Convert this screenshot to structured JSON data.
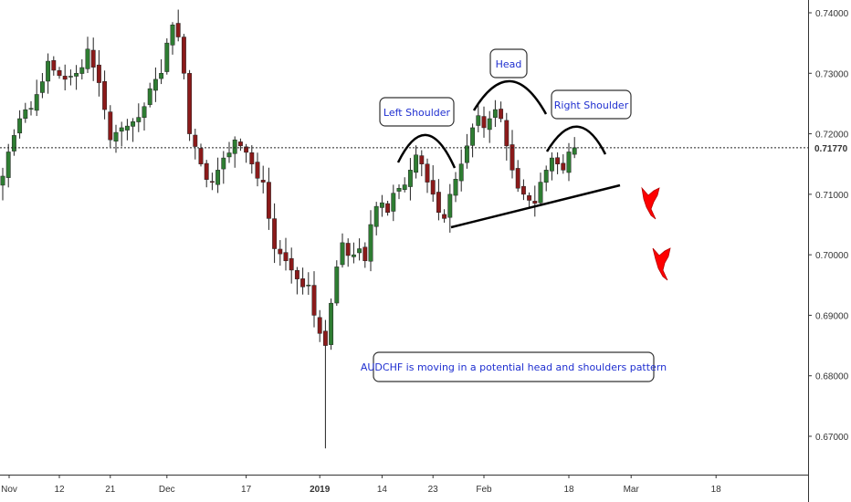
{
  "chart_data": {
    "type": "candlestick",
    "symbol_note": "AUDCHF",
    "y_axis": {
      "position": "right",
      "ylim": [
        0.664,
        0.7435
      ],
      "tick_values": [
        0.67,
        0.68,
        0.69,
        0.7,
        0.71,
        0.72,
        0.73,
        0.74
      ],
      "tick_labels": [
        "0.67000",
        "0.68000",
        "0.69000",
        "0.70000",
        "0.71000",
        "0.72000",
        "0.73000",
        "0.74000"
      ]
    },
    "x_axis": {
      "bars_total": 142,
      "ticks": [
        {
          "label": "Nov",
          "bar": 0,
          "bold": false
        },
        {
          "label": "12",
          "bar": 10,
          "bold": false
        },
        {
          "label": "21",
          "bar": 19,
          "bold": false
        },
        {
          "label": "Dec",
          "bar": 29,
          "bold": false
        },
        {
          "label": "17",
          "bar": 43,
          "bold": false
        },
        {
          "label": "2019",
          "bar": 56,
          "bold": true
        },
        {
          "label": "14",
          "bar": 67,
          "bold": false
        },
        {
          "label": "23",
          "bar": 76,
          "bold": false
        },
        {
          "label": "Feb",
          "bar": 85,
          "bold": false
        },
        {
          "label": "18",
          "bar": 100,
          "bold": false
        },
        {
          "label": "Mar",
          "bar": 111,
          "bold": false
        },
        {
          "label": "18",
          "bar": 126,
          "bold": false
        }
      ]
    },
    "last_price": {
      "value": 0.7177,
      "label": "0.71770"
    },
    "colors": {
      "up": "#2e7d32",
      "down": "#8b1a1a",
      "wick": "#222222",
      "trendline": "#000000",
      "annotation_text": "#1f2fd0"
    },
    "close_waypoints": [
      [
        0,
        0.713
      ],
      [
        1,
        0.717
      ],
      [
        3,
        0.7225
      ],
      [
        6,
        0.7265
      ],
      [
        8,
        0.732
      ],
      [
        9,
        0.7305
      ],
      [
        11,
        0.729
      ],
      [
        13,
        0.73
      ],
      [
        15,
        0.734
      ],
      [
        16,
        0.731
      ],
      [
        18,
        0.724
      ],
      [
        19,
        0.719
      ],
      [
        21,
        0.721
      ],
      [
        23,
        0.722
      ],
      [
        25,
        0.7245
      ],
      [
        27,
        0.729
      ],
      [
        28,
        0.73
      ],
      [
        29,
        0.735
      ],
      [
        30,
        0.738
      ],
      [
        31,
        0.736
      ],
      [
        32,
        0.73
      ],
      [
        33,
        0.72
      ],
      [
        35,
        0.715
      ],
      [
        37,
        0.712
      ],
      [
        39,
        0.716
      ],
      [
        41,
        0.719
      ],
      [
        42,
        0.718
      ],
      [
        44,
        0.715
      ],
      [
        46,
        0.712
      ],
      [
        47,
        0.706
      ],
      [
        48,
        0.701
      ],
      [
        50,
        0.699
      ],
      [
        52,
        0.696
      ],
      [
        54,
        0.695
      ],
      [
        55,
        0.69
      ],
      [
        56,
        0.687
      ],
      [
        57,
        0.685
      ],
      [
        58,
        0.692
      ],
      [
        59,
        0.698
      ],
      [
        60,
        0.702
      ],
      [
        62,
        0.7
      ],
      [
        63,
        0.701
      ],
      [
        64,
        0.699
      ],
      [
        65,
        0.705
      ],
      [
        66,
        0.708
      ],
      [
        68,
        0.707
      ],
      [
        70,
        0.711
      ],
      [
        72,
        0.714
      ],
      [
        73,
        0.7165
      ],
      [
        74,
        0.715
      ],
      [
        75,
        0.712
      ],
      [
        76,
        0.71
      ],
      [
        77,
        0.707
      ],
      [
        78,
        0.706
      ],
      [
        79,
        0.71
      ],
      [
        80,
        0.7125
      ],
      [
        81,
        0.715
      ],
      [
        82,
        0.718
      ],
      [
        83,
        0.721
      ],
      [
        84,
        0.723
      ],
      [
        85,
        0.721
      ],
      [
        86,
        0.7225
      ],
      [
        87,
        0.724
      ],
      [
        88,
        0.7225
      ],
      [
        89,
        0.718
      ],
      [
        90,
        0.714
      ],
      [
        91,
        0.711
      ],
      [
        92,
        0.71
      ],
      [
        93,
        0.709
      ],
      [
        94,
        0.7085
      ],
      [
        95,
        0.712
      ],
      [
        96,
        0.714
      ],
      [
        97,
        0.716
      ],
      [
        98,
        0.715
      ],
      [
        99,
        0.714
      ],
      [
        100,
        0.717
      ],
      [
        101,
        0.7177
      ]
    ],
    "annotations": {
      "left_shoulder": "Left Shoulder",
      "head": "Head",
      "right_shoulder": "Right Shoulder",
      "note": "AUDCHF is moving in a potential head and shoulders pattern"
    }
  }
}
